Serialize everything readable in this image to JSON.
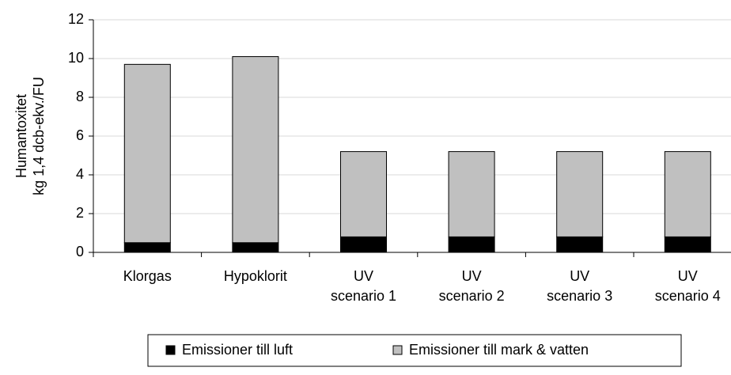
{
  "chart_data": {
    "type": "bar",
    "stacked": true,
    "y_label": "Humantoxitet\nkg 1,4 dcb-ekv./FU",
    "categories": [
      "Klorgas",
      "Hypoklorit",
      "UV\nscenario 1",
      "UV\nscenario 2",
      "UV\nscenario 3",
      "UV\nscenario 4"
    ],
    "series": [
      {
        "name": "Emissioner till luft",
        "color": "#000000",
        "values": [
          0.5,
          0.5,
          0.8,
          0.8,
          0.8,
          0.8
        ]
      },
      {
        "name": "Emissioner till mark & vatten",
        "color": "#c0c0c0",
        "values": [
          9.2,
          9.6,
          4.4,
          4.4,
          4.4,
          4.4
        ]
      }
    ],
    "ylim": [
      0,
      12
    ],
    "yticks": [
      0,
      2,
      4,
      6,
      8,
      10,
      12
    ],
    "grid": true,
    "legend": "bottom"
  }
}
